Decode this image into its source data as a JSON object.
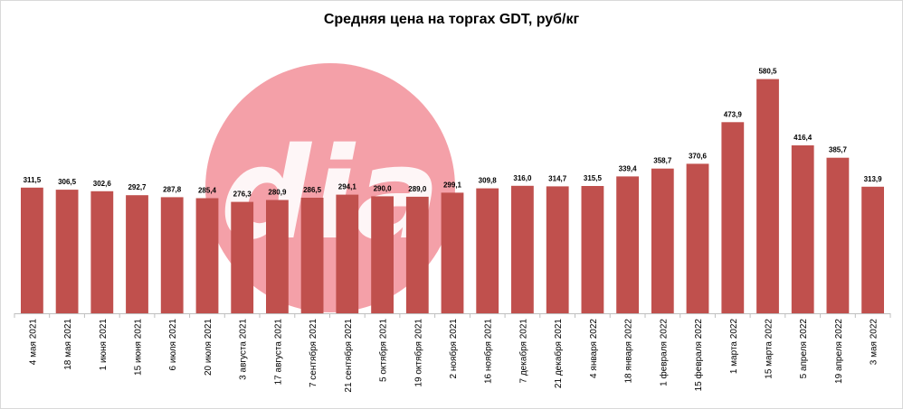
{
  "chart_data": {
    "type": "bar",
    "title": "Средняя цена на торгах GDT, руб/кг",
    "xlabel": "",
    "ylabel": "",
    "grid": false,
    "ylim": [
      0,
      620
    ],
    "colors": {
      "bar": "#c0504d",
      "watermark": "#f4a0a8"
    },
    "watermark_text": "dia",
    "categories": [
      "4 мая 2021",
      "18 мая 2021",
      "1 июня 2021",
      "15 июня 2021",
      "6 июля 2021",
      "20 июля 2021",
      "3 августа 2021",
      "17 августа 2021",
      "7 сентября 2021",
      "21 сентября 2021",
      "5 октября 2021",
      "19 октября 2021",
      "2 ноября 2021",
      "16 ноября 2021",
      "7 декабря 2021",
      "21 декабря 2021",
      "4 января 2022",
      "18 января 2022",
      "1 февраля 2022",
      "15 февраля 2022",
      "1 марта 2022",
      "15 марта 2022",
      "5 апреля 2022",
      "19 апреля 2022",
      "3 мая 2022"
    ],
    "values": [
      311.5,
      306.5,
      302.6,
      292.7,
      287.8,
      285.4,
      276.3,
      280.9,
      286.5,
      294.1,
      290.0,
      289.0,
      299.1,
      309.8,
      316.0,
      314.7,
      315.5,
      339.4,
      358.7,
      370.6,
      473.9,
      580.5,
      416.4,
      385.7,
      313.9
    ],
    "value_labels": [
      "311,5",
      "306,5",
      "302,6",
      "292,7",
      "287,8",
      "285,4",
      "276,3",
      "280,9",
      "286,5",
      "294,1",
      "290,0",
      "289,0",
      "299,1",
      "309,8",
      "316,0",
      "314,7",
      "315,5",
      "339,4",
      "358,7",
      "370,6",
      "473,9",
      "580,5",
      "416,4",
      "385,7",
      "313,9"
    ]
  }
}
